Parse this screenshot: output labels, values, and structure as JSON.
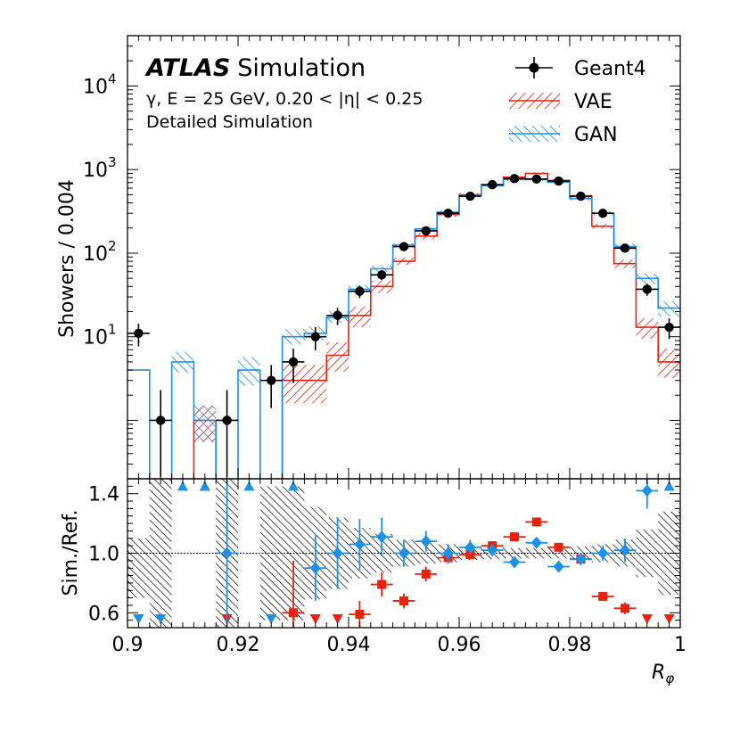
{
  "chart_data": [
    {
      "type": "step",
      "panel": "main",
      "yscale": "log",
      "title_bold": "ATLAS",
      "title_rest": "Simulation",
      "info_line1": "γ, E = 25 GeV, 0.20 < |η| < 0.25",
      "info_line2": "Detailed Simulation",
      "ylabel": "Showers / 0.004",
      "xlabel": "R",
      "xlabel_sub": "φ",
      "xlim": [
        0.9,
        1.0
      ],
      "ylim": [
        0.2,
        40000
      ],
      "y_tick_labels": [
        {
          "value": 10,
          "base": "10",
          "exp": "1"
        },
        {
          "value": 100,
          "base": "10",
          "exp": "2"
        },
        {
          "value": 1000,
          "base": "10",
          "exp": "3"
        },
        {
          "value": 10000,
          "base": "10",
          "exp": "4"
        }
      ],
      "bin_edges": [
        0.9,
        0.904,
        0.908,
        0.912,
        0.916,
        0.92,
        0.924,
        0.928,
        0.932,
        0.936,
        0.94,
        0.944,
        0.948,
        0.952,
        0.956,
        0.96,
        0.964,
        0.968,
        0.972,
        0.976,
        0.98,
        0.984,
        0.988,
        0.992,
        0.996,
        1.0
      ],
      "legend": [
        {
          "name": "Geant4",
          "style": "marker"
        },
        {
          "name": "VAE",
          "style": "hatch-red"
        },
        {
          "name": "GAN",
          "style": "hatch-blue"
        }
      ],
      "series": [
        {
          "name": "Geant4",
          "color": "#000000",
          "values": [
            11,
            1,
            0,
            0,
            1,
            0,
            3,
            5,
            10,
            18,
            35,
            55,
            120,
            185,
            300,
            480,
            660,
            780,
            770,
            730,
            480,
            300,
            115,
            37,
            13
          ],
          "err_low": [
            3.3,
            0.83,
            0,
            0,
            0.83,
            0,
            1.6,
            2.2,
            3.1,
            4.2,
            5.9,
            7.4,
            11,
            13.6,
            17.3,
            21.9,
            25.7,
            27.9,
            27.7,
            27,
            21.9,
            17.3,
            10.7,
            6.1,
            3.6
          ],
          "err_high": [
            3.3,
            1.3,
            0,
            0,
            1.3,
            0,
            1.6,
            2.2,
            3.1,
            4.2,
            5.9,
            7.4,
            11,
            13.6,
            17.3,
            21.9,
            25.7,
            27.9,
            27.7,
            27,
            21.9,
            17.3,
            10.7,
            6.1,
            3.6
          ]
        },
        {
          "name": "VAE",
          "color": "#e8220c",
          "values": [
            0,
            0,
            0,
            1,
            0,
            0,
            0,
            3,
            3,
            6,
            18,
            40,
            80,
            160,
            290,
            500,
            660,
            810,
            900,
            740,
            480,
            210,
            75,
            13,
            5
          ],
          "band_low": [
            0,
            0,
            0,
            0.55,
            0,
            0,
            0,
            1.6,
            1.6,
            3.8,
            13,
            33,
            72,
            146,
            273,
            478,
            634,
            781,
            869,
            713,
            458,
            196,
            66,
            9.5,
            3.2
          ],
          "band_high": [
            0,
            0,
            0,
            1.5,
            0,
            0,
            0,
            4.6,
            4.6,
            8.6,
            23,
            47,
            88,
            174,
            307,
            522,
            686,
            839,
            931,
            767,
            502,
            224,
            84,
            16.6,
            7.2
          ]
        },
        {
          "name": "GAN",
          "color": "#1e90e6",
          "values": [
            4,
            0,
            5,
            1,
            0,
            4,
            0,
            10,
            11,
            17,
            37,
            65,
            125,
            195,
            310,
            490,
            640,
            760,
            760,
            710,
            450,
            300,
            120,
            50,
            22
          ],
          "band_low": [
            4,
            0,
            3.7,
            0.55,
            0,
            2.6,
            0,
            8.1,
            9,
            14.6,
            33.3,
            60,
            118,
            186,
            292,
            467,
            614,
            732,
            732,
            683,
            427,
            282,
            109,
            43,
            17.5
          ],
          "band_high": [
            4,
            0,
            6.6,
            1.5,
            0,
            5.7,
            0,
            12.3,
            13.4,
            20.2,
            41.5,
            71,
            132,
            204,
            328,
            513,
            666,
            788,
            788,
            737,
            473,
            318,
            131,
            57,
            26.6
          ]
        }
      ]
    },
    {
      "type": "ratio",
      "panel": "ratio",
      "ylabel": "Sim./Ref.",
      "ylim": [
        0.5,
        1.5
      ],
      "y_tick_labels": [
        "0.6",
        "1.0",
        "1.4"
      ],
      "x_tick_labels": [
        "0.9",
        "0.92",
        "0.94",
        "0.96",
        "0.98",
        "1"
      ],
      "reference_line": 1.0,
      "reference_band": {
        "low": [
          0.7,
          0.5,
          0,
          0,
          0.45,
          0,
          0.55,
          0.55,
          0.69,
          0.76,
          0.83,
          0.87,
          0.91,
          0.93,
          0.94,
          0.955,
          0.96,
          0.965,
          0.965,
          0.965,
          0.955,
          0.94,
          0.91,
          0.84,
          0.72
        ],
        "high": [
          1.1,
          1.5,
          0,
          0,
          1.5,
          0,
          1.45,
          1.45,
          1.31,
          1.24,
          1.17,
          1.13,
          1.09,
          1.07,
          1.06,
          1.045,
          1.04,
          1.035,
          1.035,
          1.035,
          1.045,
          1.06,
          1.09,
          1.16,
          1.28
        ]
      },
      "series": [
        {
          "name": "VAE",
          "color": "#e8220c",
          "points": [
            {
              "x": 0.902,
              "y": 0.56,
              "marker": "down"
            },
            {
              "x": 0.914,
              "y": 1.45,
              "marker": "up"
            },
            {
              "x": 0.918,
              "y": 0.56,
              "marker": "down"
            },
            {
              "x": 0.926,
              "y": 0.56,
              "marker": "down"
            },
            {
              "x": 0.93,
              "y": 0.6,
              "marker": "square",
              "err": 0.35
            },
            {
              "x": 0.934,
              "y": 0.56,
              "marker": "down"
            },
            {
              "x": 0.938,
              "y": 0.56,
              "marker": "down"
            },
            {
              "x": 0.942,
              "y": 0.59,
              "marker": "square",
              "err": 0.09
            },
            {
              "x": 0.946,
              "y": 0.79,
              "marker": "square",
              "err": 0.08
            },
            {
              "x": 0.95,
              "y": 0.68,
              "marker": "square",
              "err": 0.05
            },
            {
              "x": 0.954,
              "y": 0.86,
              "marker": "square",
              "err": 0.05
            },
            {
              "x": 0.958,
              "y": 0.97,
              "marker": "square",
              "err": 0.04
            },
            {
              "x": 0.962,
              "y": 0.99,
              "marker": "square",
              "err": 0.03
            },
            {
              "x": 0.966,
              "y": 1.05,
              "marker": "square",
              "err": 0.03
            },
            {
              "x": 0.97,
              "y": 1.11,
              "marker": "square",
              "err": 0.02
            },
            {
              "x": 0.974,
              "y": 1.21,
              "marker": "square",
              "err": 0.02
            },
            {
              "x": 0.978,
              "y": 1.04,
              "marker": "square",
              "err": 0.02
            },
            {
              "x": 0.982,
              "y": 0.96,
              "marker": "square",
              "err": 0.02
            },
            {
              "x": 0.986,
              "y": 0.71,
              "marker": "square",
              "err": 0.02
            },
            {
              "x": 0.99,
              "y": 0.63,
              "marker": "square",
              "err": 0.04
            },
            {
              "x": 0.994,
              "y": 0.56,
              "marker": "down"
            },
            {
              "x": 0.998,
              "y": 0.56,
              "marker": "down"
            }
          ]
        },
        {
          "name": "GAN",
          "color": "#1e90e6",
          "points": [
            {
              "x": 0.902,
              "y": 0.56,
              "marker": "down"
            },
            {
              "x": 0.906,
              "y": 0.56,
              "marker": "down"
            },
            {
              "x": 0.91,
              "y": 1.45,
              "marker": "up"
            },
            {
              "x": 0.914,
              "y": 1.45,
              "marker": "up"
            },
            {
              "x": 0.918,
              "y": 1.0,
              "marker": "diamond",
              "err": 0.55
            },
            {
              "x": 0.922,
              "y": 1.45,
              "marker": "up"
            },
            {
              "x": 0.926,
              "y": 0.56,
              "marker": "down"
            },
            {
              "x": 0.93,
              "y": 1.45,
              "marker": "up"
            },
            {
              "x": 0.934,
              "y": 0.9,
              "marker": "diamond",
              "err": 0.22
            },
            {
              "x": 0.938,
              "y": 1.0,
              "marker": "diamond",
              "err": 0.24
            },
            {
              "x": 0.942,
              "y": 1.06,
              "marker": "diamond",
              "err": 0.17
            },
            {
              "x": 0.946,
              "y": 1.11,
              "marker": "diamond",
              "err": 0.13
            },
            {
              "x": 0.95,
              "y": 1.0,
              "marker": "diamond",
              "err": 0.09
            },
            {
              "x": 0.954,
              "y": 1.08,
              "marker": "diamond",
              "err": 0.07
            },
            {
              "x": 0.958,
              "y": 1.0,
              "marker": "diamond",
              "err": 0.06
            },
            {
              "x": 0.962,
              "y": 1.04,
              "marker": "diamond",
              "err": 0.05
            },
            {
              "x": 0.966,
              "y": 1.02,
              "marker": "diamond",
              "err": 0.04
            },
            {
              "x": 0.97,
              "y": 0.94,
              "marker": "diamond",
              "err": 0.03
            },
            {
              "x": 0.974,
              "y": 1.07,
              "marker": "diamond",
              "err": 0.03
            },
            {
              "x": 0.978,
              "y": 0.91,
              "marker": "diamond",
              "err": 0.03
            },
            {
              "x": 0.982,
              "y": 0.96,
              "marker": "diamond",
              "err": 0.04
            },
            {
              "x": 0.986,
              "y": 1.0,
              "marker": "diamond",
              "err": 0.05
            },
            {
              "x": 0.99,
              "y": 1.02,
              "marker": "diamond",
              "err": 0.08
            },
            {
              "x": 0.994,
              "y": 1.42,
              "marker": "diamond",
              "err": 0.12
            },
            {
              "x": 0.998,
              "y": 1.45,
              "marker": "up"
            }
          ]
        }
      ]
    }
  ]
}
